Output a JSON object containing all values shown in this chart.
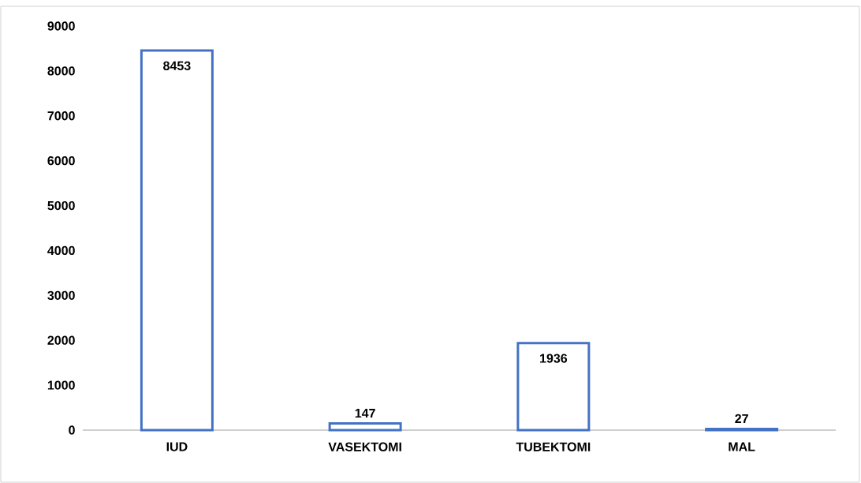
{
  "chart_data": {
    "type": "bar",
    "categories": [
      "IUD",
      "VASEKTOMI",
      "TUBEKTOMI",
      "MAL"
    ],
    "values": [
      8453,
      147,
      1936,
      27
    ],
    "color": "#4472c4",
    "ylim": [
      0,
      9000
    ],
    "yticks": [
      0,
      1000,
      2000,
      3000,
      4000,
      5000,
      6000,
      7000,
      8000,
      9000
    ],
    "data_labels": true
  }
}
